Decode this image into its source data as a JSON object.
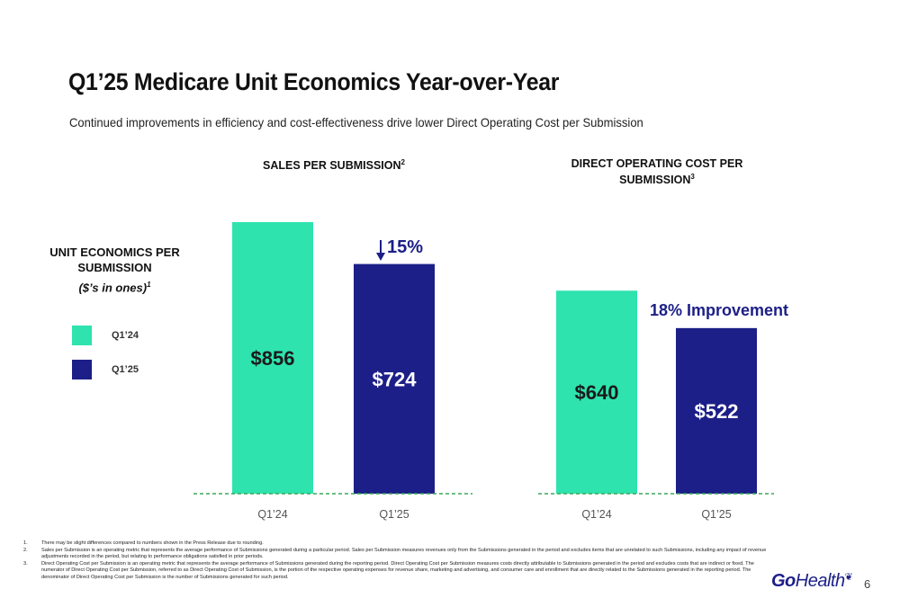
{
  "slide": {
    "title": "Q1’25 Medicare Unit Economics Year-over-Year",
    "subtitle": "Continued improvements in efficiency and cost-effectiveness drive lower Direct Operating Cost per Submission",
    "page_number": "6"
  },
  "legend": {
    "title_line1": "UNIT ECONOMICS PER",
    "title_line2": "SUBMISSION",
    "subtitle": "($’s in ones)",
    "subtitle_sup": "1",
    "items": [
      {
        "label": "Q1’24",
        "color": "#2ee3ae"
      },
      {
        "label": "Q1’25",
        "color": "#1c1f87"
      }
    ]
  },
  "colors": {
    "q124": "#2ee3ae",
    "q125": "#1c1f87",
    "baseline": "#3aa85a",
    "annotation": "#1c1f87",
    "axis_text": "#555555"
  },
  "chart_data": [
    {
      "type": "bar",
      "title": "SALES PER SUBMISSION",
      "title_sup": "2",
      "categories": [
        "Q1’24",
        "Q1’25"
      ],
      "values": [
        856,
        724
      ],
      "data_labels": [
        "$856",
        "$724"
      ],
      "annotation": "15%",
      "annotation_icon": "down-arrow-icon",
      "ylim": [
        0,
        860
      ]
    },
    {
      "type": "bar",
      "title": "DIRECT OPERATING COST PER SUBMISSION",
      "title_line1": "DIRECT OPERATING COST PER",
      "title_line2": "SUBMISSION",
      "title_sup": "3",
      "categories": [
        "Q1’24",
        "Q1’25"
      ],
      "values": [
        640,
        522
      ],
      "data_labels": [
        "$640",
        "$522"
      ],
      "annotation": "18% Improvement",
      "ylim": [
        0,
        860
      ]
    }
  ],
  "footnotes": [
    {
      "num": "1.",
      "text": "There may be slight differences compared to numbers shown in the Press Release due to rounding."
    },
    {
      "num": "2.",
      "text": "Sales per Submission is an operating metric that represents the average performance of Submissions generated during a particular period. Sales per Submission measures revenues only from the Submissions generated in the period and excludes items that are unrelated to such Submissions, including any impact of revenue adjustments recorded in the period, but relating to performance obligations satisfied in prior periods."
    },
    {
      "num": "3.",
      "text": "Direct Operating Cost per Submission is an operating metric that represents the average performance of Submissions generated during the reporting period. Direct Operating Cost per Submission measures costs directly attributable to Submissions generated in the period and excludes costs that are indirect or fixed. The numerator of Direct Operating Cost per Submission, referred to as Direct Operating Cost of Submission, is the portion of the respective operating expenses for revenue share, marketing and advertising, and consumer care and enrollment that are directly related to the Submissions generated in the reporting period. The denominator of Direct Operating Cost per Submission is the number of Submissions generated for such period."
    }
  ],
  "logo": {
    "bold": "Go",
    "light": "Health"
  }
}
